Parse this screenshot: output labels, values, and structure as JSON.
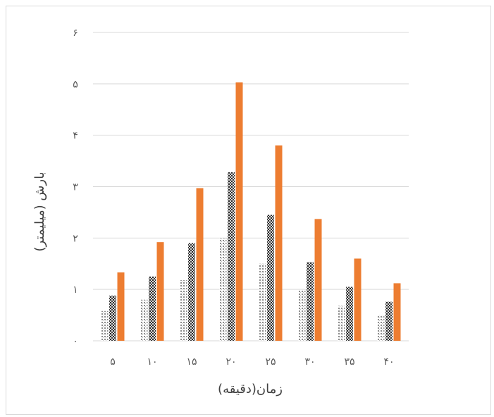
{
  "chart_data": {
    "type": "bar",
    "title": "",
    "xlabel": "زمان(دقیقه)",
    "ylabel": "بارش (میلیمتر)",
    "categories": [
      "۵",
      "۱۰",
      "۱۵",
      "۲۰",
      "۲۵",
      "۳۰",
      "۳۵",
      "۴۰"
    ],
    "y_ticks": [
      "۰",
      "۱",
      "۲",
      "۳",
      "۴",
      "۵",
      "۶"
    ],
    "ylim": [
      0,
      6
    ],
    "grid": true,
    "legend": "none",
    "series": [
      {
        "values": [
          0.58,
          0.8,
          1.18,
          2.0,
          1.5,
          0.98,
          0.68,
          0.5
        ],
        "color": "#a6a6a6",
        "pattern": "light-dotted"
      },
      {
        "values": [
          0.88,
          1.25,
          1.9,
          3.28,
          2.45,
          1.53,
          1.05,
          0.76
        ],
        "color": "#404040",
        "pattern": "dark-checker"
      },
      {
        "values": [
          1.33,
          1.92,
          2.97,
          5.03,
          3.8,
          2.37,
          1.6,
          1.12
        ],
        "color": "#ed7d31",
        "pattern": "solid"
      }
    ]
  }
}
